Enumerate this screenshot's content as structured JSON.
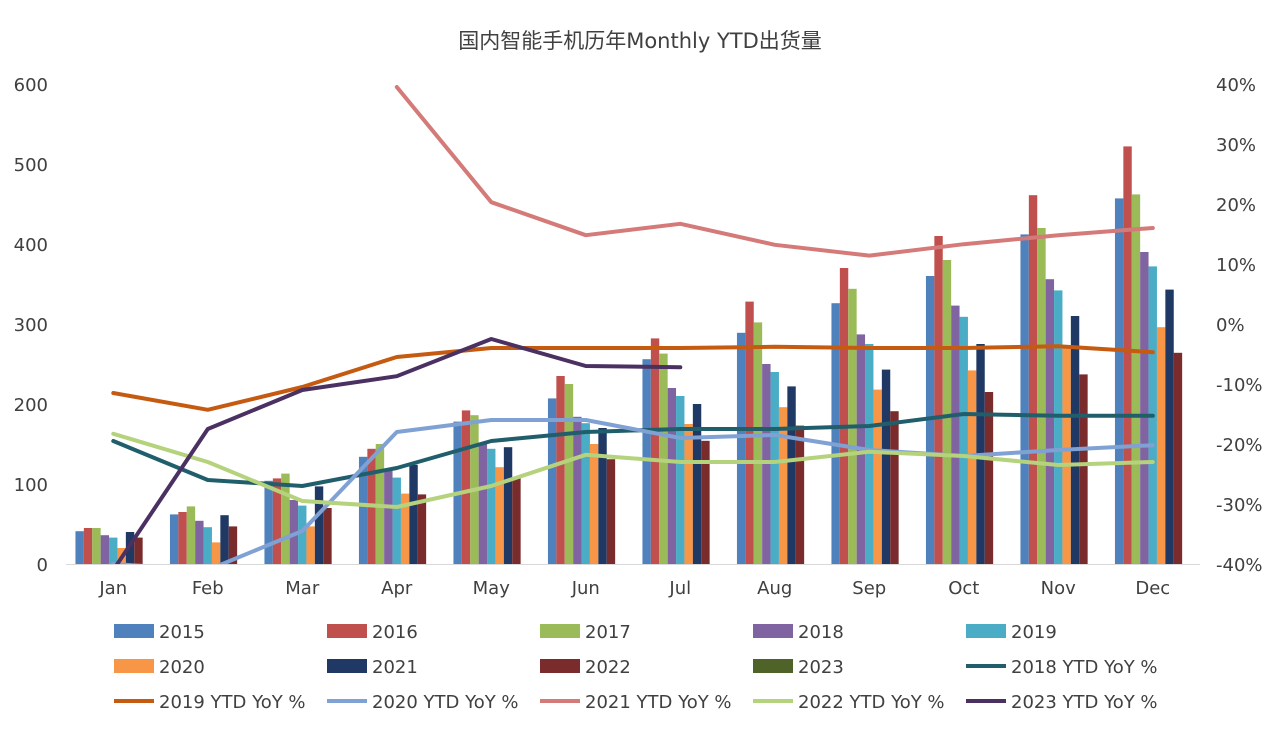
{
  "chart_data": {
    "type": "bar",
    "title": "国内智能手机历年Monthly YTD出货量",
    "categories": [
      "Jan",
      "Feb",
      "Mar",
      "Apr",
      "May",
      "Jun",
      "Jul",
      "Aug",
      "Sep",
      "Oct",
      "Nov",
      "Dec"
    ],
    "y_left": {
      "ylim": [
        0,
        600
      ],
      "ticks": [
        "0",
        "100",
        "200",
        "300",
        "400",
        "500",
        "600"
      ]
    },
    "y_right": {
      "ylim": [
        -40,
        40
      ],
      "ticks": [
        "-40%",
        "-30%",
        "-20%",
        "-10%",
        "0%",
        "10%",
        "20%",
        "30%",
        "40%"
      ]
    },
    "grid": false,
    "legend_position": "bottom",
    "bar_series": [
      {
        "name": "2015",
        "color": "#4F81BD",
        "values": [
          41,
          62,
          104,
          134,
          178,
          207,
          256,
          289,
          326,
          360,
          412,
          457
        ]
      },
      {
        "name": "2016",
        "color": "#C0504D",
        "values": [
          45,
          65,
          107,
          144,
          192,
          235,
          282,
          328,
          370,
          410,
          461,
          522
        ]
      },
      {
        "name": "2017",
        "color": "#9BBB59",
        "values": [
          45,
          72,
          113,
          150,
          186,
          225,
          263,
          302,
          344,
          380,
          420,
          462
        ]
      },
      {
        "name": "2018",
        "color": "#8064A2",
        "values": [
          36,
          54,
          80,
          117,
          150,
          184,
          220,
          250,
          287,
          323,
          356,
          390
        ]
      },
      {
        "name": "2019",
        "color": "#4BACC6",
        "values": [
          33,
          46,
          73,
          108,
          144,
          176,
          210,
          240,
          275,
          309,
          342,
          372
        ]
      },
      {
        "name": "2020",
        "color": "#F79646",
        "values": [
          20,
          27,
          47,
          88,
          121,
          150,
          175,
          196,
          218,
          242,
          270,
          296
        ]
      },
      {
        "name": "2021",
        "color": "#1F3864",
        "values": [
          40,
          61,
          97,
          124,
          146,
          170,
          200,
          222,
          243,
          275,
          310,
          343
        ]
      },
      {
        "name": "2022",
        "color": "#7A2C2C",
        "values": [
          33,
          47,
          70,
          87,
          107,
          131,
          154,
          173,
          191,
          215,
          237,
          264
        ]
      },
      {
        "name": "2023",
        "color": "#4F6228",
        "values": []
      }
    ],
    "line_series": [
      {
        "name": "2018 YTD YoY %",
        "color": "#215E6B",
        "values": [
          -19.5,
          -26,
          -27,
          -24,
          -19.5,
          -18,
          -17.5,
          -17.5,
          -17,
          -15,
          -15.3,
          -15.3
        ]
      },
      {
        "name": "2019 YTD YoY %",
        "color": "#C55A11",
        "values": [
          -11.5,
          -14.3,
          -10.5,
          -5.5,
          -4,
          -4,
          -4,
          -3.8,
          -4,
          -4,
          -3.7,
          -4.7
        ]
      },
      {
        "name": "2020 YTD YoY %",
        "color": "#7FA1D4",
        "values": [
          -40,
          -41,
          -34.5,
          -18,
          -16,
          -16,
          -19,
          -18.5,
          -21,
          -22,
          -21,
          -20.2
        ]
      },
      {
        "name": "2021 YTD YoY %",
        "color": "#D47A78",
        "values": [
          null,
          null,
          null,
          39.5,
          20.3,
          14.8,
          16.7,
          13.2,
          11.4,
          13.3,
          14.8,
          16
        ]
      },
      {
        "name": "2022 YTD YoY %",
        "color": "#B5D27C",
        "values": [
          -18.3,
          -23,
          -29.5,
          -30.5,
          -27,
          -21.8,
          -23,
          -23,
          -21.3,
          -22,
          -23.5,
          -23
        ]
      },
      {
        "name": "2023 YTD YoY %",
        "color": "#4B3062",
        "values": [
          -41,
          -17.5,
          -11,
          -8.7,
          -2.5,
          -7,
          -7.2
        ]
      }
    ]
  }
}
